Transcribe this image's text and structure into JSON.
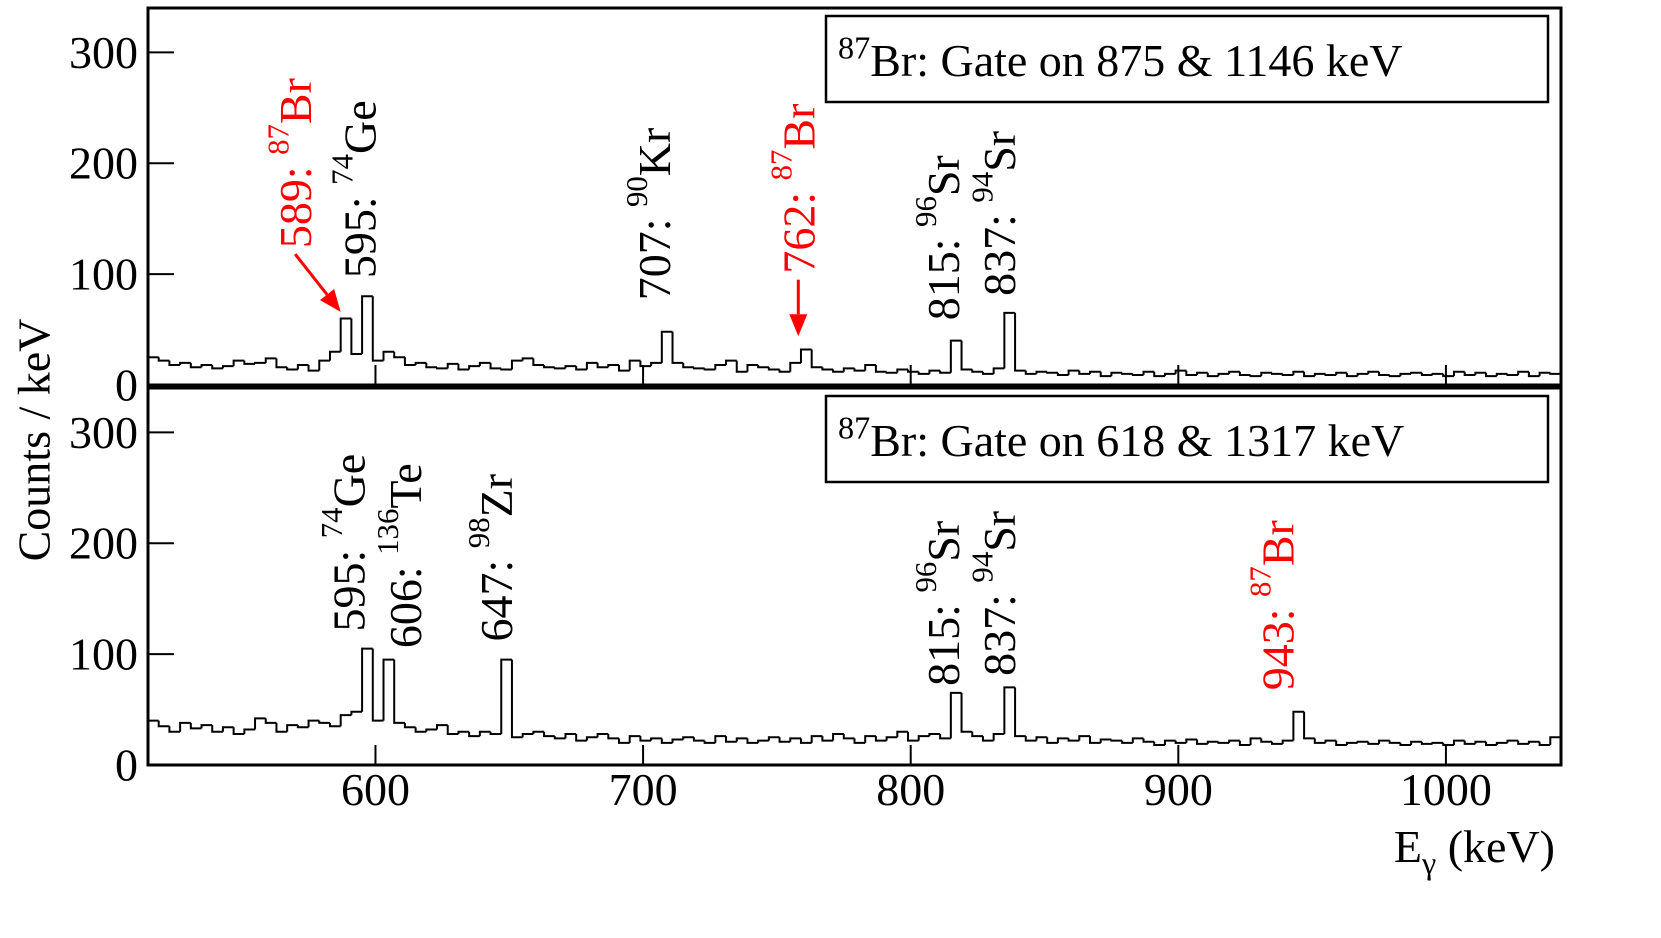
{
  "chart_data": [
    {
      "type": "histogram",
      "ylabel": "Counts / keV",
      "title": [
        "87",
        "Br: Gate on 875 & 1146 keV"
      ],
      "color": "#000000",
      "xlim": [
        515,
        1043
      ],
      "ylim": [
        0,
        340
      ],
      "yticks": [
        0,
        100,
        200,
        300
      ],
      "bins": [
        515,
        519,
        523,
        527,
        531,
        535,
        539,
        543,
        547,
        551,
        555,
        559,
        563,
        567,
        571,
        575,
        579,
        583,
        587,
        591,
        595,
        599,
        603,
        607,
        611,
        615,
        619,
        623,
        627,
        631,
        635,
        639,
        643,
        647,
        651,
        655,
        659,
        663,
        667,
        671,
        675,
        679,
        683,
        687,
        691,
        695,
        699,
        703,
        707,
        711,
        715,
        719,
        723,
        727,
        731,
        735,
        739,
        743,
        747,
        751,
        755,
        759,
        763,
        767,
        771,
        775,
        779,
        783,
        787,
        791,
        795,
        799,
        803,
        807,
        811,
        815,
        819,
        823,
        827,
        831,
        835,
        839,
        843,
        847,
        851,
        855,
        859,
        863,
        867,
        871,
        875,
        879,
        883,
        887,
        891,
        895,
        899,
        903,
        907,
        911,
        915,
        919,
        923,
        927,
        931,
        935,
        939,
        943,
        947,
        951,
        955,
        959,
        963,
        967,
        971,
        975,
        979,
        983,
        987,
        991,
        995,
        999,
        1003,
        1007,
        1011,
        1015,
        1019,
        1023,
        1027,
        1031,
        1035,
        1039,
        1043
      ],
      "values": [
        25,
        22,
        18,
        20,
        16,
        18,
        15,
        17,
        22,
        19,
        20,
        24,
        16,
        14,
        18,
        13,
        22,
        30,
        60,
        28,
        80,
        22,
        30,
        25,
        18,
        20,
        16,
        15,
        19,
        14,
        17,
        20,
        15,
        14,
        22,
        24,
        18,
        16,
        15,
        17,
        14,
        20,
        16,
        18,
        13,
        22,
        17,
        20,
        48,
        20,
        16,
        15,
        14,
        18,
        22,
        12,
        18,
        16,
        14,
        12,
        20,
        32,
        16,
        14,
        12,
        15,
        13,
        18,
        12,
        11,
        14,
        12,
        10,
        13,
        11,
        40,
        14,
        12,
        10,
        15,
        65,
        13,
        10,
        12,
        11,
        9,
        13,
        10,
        12,
        8,
        11,
        10,
        9,
        12,
        8,
        10,
        13,
        9,
        11,
        8,
        10,
        12,
        9,
        8,
        11,
        10,
        9,
        12,
        8,
        10,
        9,
        11,
        8,
        10,
        12,
        9,
        8,
        10,
        11,
        9,
        10,
        8,
        12,
        9,
        11,
        8,
        10,
        9,
        12,
        8,
        11,
        10
      ],
      "annotations": [
        {
          "text": [
            "589: ",
            "87",
            "Br"
          ],
          "color": "#ff0000",
          "x": 570,
          "y": 118,
          "arrow_to": [
            587,
            66
          ]
        },
        {
          "text": [
            "595: ",
            "74",
            "Ge"
          ],
          "color": "#000000",
          "x": 594,
          "y": 91
        },
        {
          "text": [
            "707: ",
            "90",
            "Kr"
          ],
          "color": "#000000",
          "x": 704,
          "y": 71
        },
        {
          "text": [
            "762: ",
            "87",
            "Br"
          ],
          "color": "#ff0000",
          "x": 758,
          "y": 95,
          "arrow_to": [
            758,
            44
          ]
        },
        {
          "text": [
            "815: ",
            "96",
            "Sr"
          ],
          "color": "#000000",
          "x": 812,
          "y": 53
        },
        {
          "text": [
            "837: ",
            "94",
            "Sr"
          ],
          "color": "#000000",
          "x": 833,
          "y": 75
        }
      ]
    },
    {
      "type": "histogram",
      "xlabel": [
        "E",
        "γ",
        " (keV)"
      ],
      "title": [
        "87",
        "Br: Gate on 618 & 1317 keV"
      ],
      "color": "#000000",
      "xlim": [
        515,
        1043
      ],
      "ylim": [
        0,
        340
      ],
      "yticks": [
        0,
        100,
        200,
        300
      ],
      "xticks": [
        600,
        700,
        800,
        900,
        1000
      ],
      "bins": [
        515,
        519,
        523,
        527,
        531,
        535,
        539,
        543,
        547,
        551,
        555,
        559,
        563,
        567,
        571,
        575,
        579,
        583,
        587,
        591,
        595,
        599,
        603,
        607,
        611,
        615,
        619,
        623,
        627,
        631,
        635,
        639,
        643,
        647,
        651,
        655,
        659,
        663,
        667,
        671,
        675,
        679,
        683,
        687,
        691,
        695,
        699,
        703,
        707,
        711,
        715,
        719,
        723,
        727,
        731,
        735,
        739,
        743,
        747,
        751,
        755,
        759,
        763,
        767,
        771,
        775,
        779,
        783,
        787,
        791,
        795,
        799,
        803,
        807,
        811,
        815,
        819,
        823,
        827,
        831,
        835,
        839,
        843,
        847,
        851,
        855,
        859,
        863,
        867,
        871,
        875,
        879,
        883,
        887,
        891,
        895,
        899,
        903,
        907,
        911,
        915,
        919,
        923,
        927,
        931,
        935,
        939,
        943,
        947,
        951,
        955,
        959,
        963,
        967,
        971,
        975,
        979,
        983,
        987,
        991,
        995,
        999,
        1003,
        1007,
        1011,
        1015,
        1019,
        1023,
        1027,
        1031,
        1035,
        1039,
        1043
      ],
      "values": [
        40,
        35,
        30,
        38,
        33,
        36,
        30,
        34,
        28,
        32,
        42,
        38,
        30,
        36,
        34,
        40,
        38,
        35,
        45,
        48,
        105,
        40,
        95,
        38,
        34,
        30,
        32,
        36,
        28,
        30,
        26,
        30,
        28,
        95,
        25,
        28,
        30,
        26,
        24,
        28,
        22,
        25,
        28,
        24,
        20,
        26,
        22,
        24,
        20,
        23,
        25,
        22,
        20,
        26,
        21,
        24,
        20,
        22,
        25,
        21,
        24,
        20,
        26,
        22,
        28,
        24,
        20,
        26,
        22,
        25,
        30,
        22,
        26,
        28,
        24,
        65,
        30,
        26,
        22,
        28,
        70,
        26,
        22,
        25,
        20,
        24,
        22,
        26,
        20,
        23,
        22,
        20,
        24,
        21,
        18,
        22,
        20,
        23,
        19,
        21,
        20,
        22,
        18,
        24,
        21,
        19,
        22,
        48,
        24,
        20,
        22,
        18,
        20,
        21,
        19,
        22,
        20,
        18,
        21,
        19,
        20,
        18,
        22,
        19,
        21,
        18,
        20,
        22,
        19,
        21,
        18,
        25
      ],
      "annotations": [
        {
          "text": [
            "595: ",
            "74",
            "Ge"
          ],
          "color": "#000000",
          "x": 590,
          "y": 115
        },
        {
          "text": [
            "606: ",
            "136",
            "Te"
          ],
          "color": "#000000",
          "x": 611,
          "y": 100
        },
        {
          "text": [
            "647: ",
            "98",
            "Zr"
          ],
          "color": "#000000",
          "x": 645,
          "y": 106
        },
        {
          "text": [
            "815: ",
            "96",
            "Sr"
          ],
          "color": "#000000",
          "x": 812,
          "y": 66
        },
        {
          "text": [
            "837: ",
            "94",
            "Sr"
          ],
          "color": "#000000",
          "x": 833,
          "y": 75
        },
        {
          "text": [
            "943: ",
            "87",
            "Br"
          ],
          "color": "#ff0000",
          "x": 937,
          "y": 62
        }
      ]
    }
  ]
}
